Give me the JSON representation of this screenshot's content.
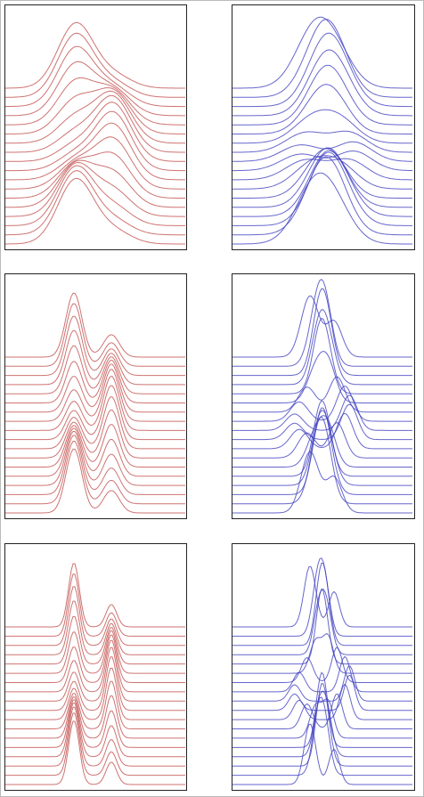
{
  "figure": {
    "panels": [
      {
        "color": "#c0504d"
      },
      {
        "color": "#4040c0"
      },
      {
        "color": "#c0504d"
      },
      {
        "color": "#4040c0"
      },
      {
        "color": "#c0504d"
      },
      {
        "color": "#4040c0"
      }
    ]
  }
}
